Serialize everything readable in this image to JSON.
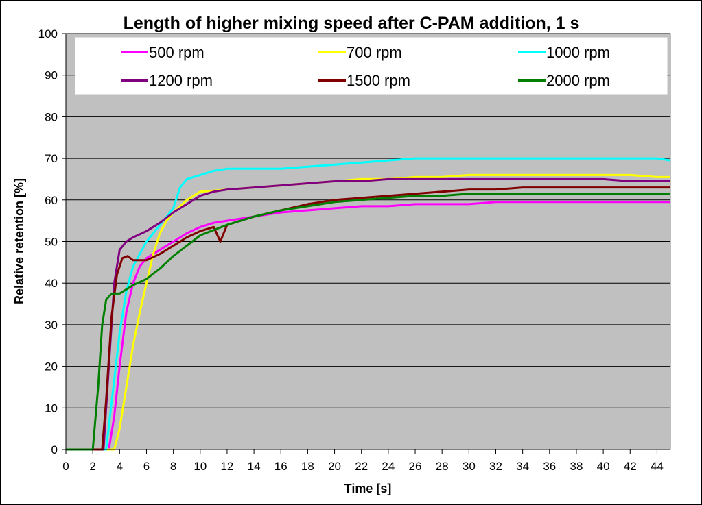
{
  "chart_data": {
    "type": "line",
    "title": "Length of higher mixing speed after C-PAM addition, 1 s",
    "xlabel": "Time [s]",
    "ylabel": "Relative retention [%]",
    "xlim": [
      0,
      45
    ],
    "ylim": [
      0,
      100
    ],
    "x_ticks": [
      0,
      2,
      4,
      6,
      8,
      10,
      12,
      14,
      16,
      18,
      20,
      22,
      24,
      26,
      28,
      30,
      32,
      34,
      36,
      38,
      40,
      42,
      44
    ],
    "y_ticks": [
      0,
      10,
      20,
      30,
      40,
      50,
      60,
      70,
      80,
      90,
      100
    ],
    "grid": "horizontal",
    "legend_position": "top",
    "plot_background": "#c0c0c0",
    "series": [
      {
        "name": "500 rpm",
        "color": "#ff00ff",
        "x": [
          0,
          3.2,
          3.6,
          4,
          4.5,
          5,
          5.5,
          6,
          7,
          8,
          9,
          10,
          11,
          12,
          14,
          16,
          18,
          20,
          22,
          24,
          26,
          28,
          30,
          32,
          34,
          36,
          38,
          40,
          42,
          44,
          45
        ],
        "values": [
          0,
          0,
          8,
          20,
          33,
          40,
          44,
          46,
          48,
          50,
          52,
          53.5,
          54.5,
          55,
          56,
          57,
          57.5,
          58,
          58.5,
          58.5,
          59,
          59,
          59,
          59.5,
          59.5,
          59.5,
          59.5,
          59.5,
          59.5,
          59.5,
          59.5
        ]
      },
      {
        "name": "700 rpm",
        "color": "#ffff00",
        "x": [
          0,
          3.6,
          4,
          4.5,
          5,
          5.5,
          6,
          6.5,
          7,
          7.5,
          8,
          9,
          10,
          12,
          14,
          16,
          18,
          20,
          22,
          24,
          26,
          28,
          30,
          32,
          34,
          36,
          38,
          40,
          42,
          44,
          45
        ],
        "values": [
          0,
          0,
          5,
          15,
          25,
          33,
          40,
          47,
          52,
          55,
          57,
          60,
          62,
          62.5,
          63,
          63.5,
          64,
          64.5,
          65,
          65,
          65.5,
          65.5,
          66,
          66,
          66,
          66,
          66,
          66,
          66,
          65.5,
          65.5
        ]
      },
      {
        "name": "1000 rpm",
        "color": "#00ffff",
        "x": [
          0,
          3,
          3.5,
          4,
          4.5,
          5,
          5.5,
          6,
          6.5,
          7,
          7.5,
          8,
          8.5,
          9,
          10,
          11,
          12,
          14,
          16,
          18,
          20,
          22,
          24,
          26,
          28,
          30,
          32,
          34,
          36,
          38,
          40,
          42,
          44,
          45
        ],
        "values": [
          0,
          0,
          14,
          28,
          38,
          44,
          47,
          50,
          52,
          54,
          56,
          58,
          63,
          65,
          66,
          67,
          67.5,
          67.5,
          67.5,
          68,
          68.5,
          69,
          69.5,
          70,
          70,
          70,
          70,
          70,
          70,
          70,
          70,
          70,
          70,
          69.5
        ]
      },
      {
        "name": "1200 rpm",
        "color": "#800080",
        "x": [
          0,
          2.8,
          3.2,
          3.6,
          4,
          4.5,
          5,
          6,
          7,
          8,
          9,
          10,
          11,
          12,
          14,
          16,
          18,
          20,
          22,
          24,
          26,
          28,
          30,
          32,
          34,
          36,
          38,
          40,
          42,
          44,
          45
        ],
        "values": [
          0,
          0,
          20,
          40,
          48,
          50,
          51,
          52.5,
          54.5,
          57,
          59,
          61,
          62,
          62.5,
          63,
          63.5,
          64,
          64.5,
          64.5,
          65,
          65,
          65,
          65,
          65,
          65,
          65,
          65,
          65,
          64.5,
          64.5,
          64.5
        ]
      },
      {
        "name": "1500 rpm",
        "color": "#800000",
        "x": [
          0,
          2.7,
          3,
          3.4,
          3.8,
          4.2,
          4.6,
          5,
          6,
          7,
          8,
          9,
          10,
          11,
          11.5,
          12,
          14,
          16,
          18,
          20,
          22,
          24,
          26,
          28,
          30,
          32,
          34,
          36,
          38,
          40,
          42,
          44,
          45
        ],
        "values": [
          0,
          0,
          12,
          32,
          42,
          46,
          46.5,
          45.5,
          45.5,
          47,
          49,
          51,
          52.5,
          53.5,
          50,
          54,
          56,
          57.5,
          59,
          60,
          60.5,
          61,
          61.5,
          62,
          62.5,
          62.5,
          63,
          63,
          63,
          63,
          63,
          63,
          63
        ]
      },
      {
        "name": "2000 rpm",
        "color": "#008000",
        "x": [
          0,
          2,
          2.4,
          2.7,
          3,
          3.4,
          4,
          4.5,
          5,
          6,
          7,
          8,
          9,
          10,
          12,
          14,
          16,
          18,
          20,
          22,
          24,
          26,
          28,
          30,
          32,
          34,
          36,
          38,
          40,
          42,
          44,
          45
        ],
        "values": [
          0,
          0,
          15,
          30,
          36,
          37.5,
          37.5,
          38.5,
          39.5,
          41,
          43.5,
          46.5,
          49,
          51.5,
          54,
          56,
          57.5,
          58.5,
          59.5,
          60,
          60.5,
          61,
          61,
          61.5,
          61.5,
          61.5,
          61.5,
          61.5,
          61.5,
          61.5,
          61.5,
          61.5
        ]
      }
    ]
  }
}
